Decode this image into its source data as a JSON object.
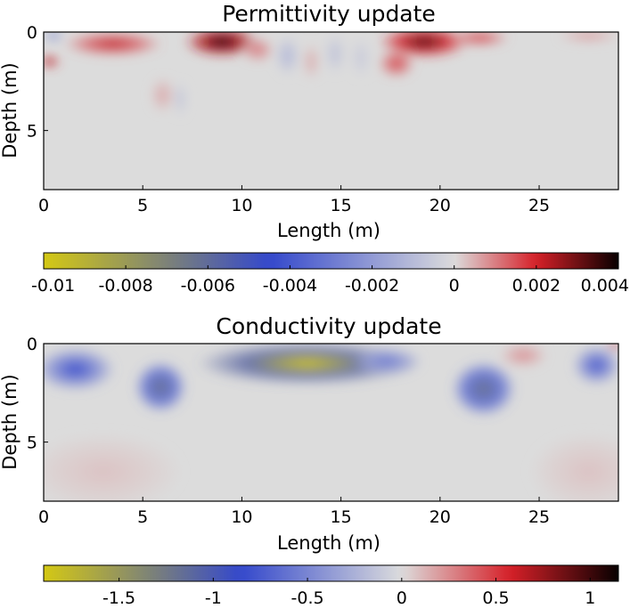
{
  "chart_data": [
    {
      "type": "heatmap",
      "title": "Permittivity update",
      "xlabel": "Length (m)",
      "ylabel": "Depth (m)",
      "xlim": [
        0,
        29
      ],
      "ylim": [
        8,
        0
      ],
      "x_ticks": [
        "0",
        "5",
        "10",
        "15",
        "20",
        "25"
      ],
      "y_ticks": [
        "0",
        "5"
      ],
      "colorbar": {
        "range": [
          -0.01,
          0.004
        ],
        "ticks": [
          -0.01,
          -0.008,
          -0.006,
          -0.004,
          -0.002,
          0,
          0.002,
          0.004
        ],
        "tick_labels": [
          "-0.01",
          "-0.008",
          "-0.006",
          "-0.004",
          "-0.002",
          "0",
          "0.002",
          "0.004"
        ]
      },
      "blobs": [
        {
          "x": 3.5,
          "y": 0.6,
          "rx": 2.5,
          "ry": 0.6,
          "v": 0.0022
        },
        {
          "x": 9.0,
          "y": 0.5,
          "rx": 1.9,
          "ry": 0.75,
          "v": 0.0042
        },
        {
          "x": 10.8,
          "y": 0.9,
          "rx": 0.8,
          "ry": 0.6,
          "v": 0.0012
        },
        {
          "x": 6.0,
          "y": 3.2,
          "rx": 0.6,
          "ry": 0.9,
          "v": 0.0006
        },
        {
          "x": 6.9,
          "y": 3.4,
          "rx": 0.3,
          "ry": 0.9,
          "v": -0.0009
        },
        {
          "x": 0.3,
          "y": 1.5,
          "rx": 0.5,
          "ry": 0.3,
          "v": 0.003
        },
        {
          "x": 0.5,
          "y": 0.2,
          "rx": 0.5,
          "ry": 0.25,
          "v": -0.003
        },
        {
          "x": 12.3,
          "y": 1.2,
          "rx": 0.6,
          "ry": 1.0,
          "v": -0.0012
        },
        {
          "x": 13.5,
          "y": 1.5,
          "rx": 0.4,
          "ry": 0.9,
          "v": 0.0006
        },
        {
          "x": 14.7,
          "y": 1.1,
          "rx": 0.5,
          "ry": 1.0,
          "v": -0.0009
        },
        {
          "x": 16.0,
          "y": 1.3,
          "rx": 0.5,
          "ry": 1.0,
          "v": -0.0006
        },
        {
          "x": 19.2,
          "y": 0.5,
          "rx": 2.3,
          "ry": 0.8,
          "v": 0.0035
        },
        {
          "x": 17.8,
          "y": 1.6,
          "rx": 0.9,
          "ry": 0.7,
          "v": 0.0018
        },
        {
          "x": 22.0,
          "y": 0.3,
          "rx": 1.5,
          "ry": 0.4,
          "v": 0.0018
        },
        {
          "x": 27.5,
          "y": 0.2,
          "rx": 1.6,
          "ry": 0.3,
          "v": 0.0008
        }
      ]
    },
    {
      "type": "heatmap",
      "title": "Conductivity update",
      "xlabel": "Length (m)",
      "ylabel": "Depth (m)",
      "xlim": [
        0,
        29
      ],
      "ylim": [
        8,
        0
      ],
      "x_ticks": [
        "0",
        "5",
        "10",
        "15",
        "20",
        "25"
      ],
      "y_ticks": [
        "0",
        "5"
      ],
      "colorbar": {
        "range": [
          -1.9,
          1.15
        ],
        "ticks": [
          -1.5,
          -1,
          -0.5,
          0,
          0.5,
          1
        ],
        "tick_labels": [
          "-1.5",
          "-1",
          "-0.5",
          "0",
          "0.5",
          "1"
        ]
      },
      "blobs": [
        {
          "x": 1.6,
          "y": 1.3,
          "rx": 2.0,
          "ry": 1.1,
          "v": -0.85
        },
        {
          "x": 5.9,
          "y": 2.2,
          "rx": 1.3,
          "ry": 1.3,
          "v": -1.2
        },
        {
          "x": 13.3,
          "y": 1.0,
          "rx": 5.6,
          "ry": 1.1,
          "v": -2.0
        },
        {
          "x": 17.3,
          "y": 0.9,
          "rx": 1.8,
          "ry": 0.7,
          "v": -0.6
        },
        {
          "x": 22.2,
          "y": 2.3,
          "rx": 1.6,
          "ry": 1.4,
          "v": -1.2
        },
        {
          "x": 27.9,
          "y": 1.1,
          "rx": 1.2,
          "ry": 1.0,
          "v": -0.8
        },
        {
          "x": 24.2,
          "y": 0.6,
          "rx": 1.2,
          "ry": 0.6,
          "v": 0.25
        },
        {
          "x": 28.8,
          "y": 0.1,
          "rx": 0.4,
          "ry": 0.15,
          "v": 1.0
        },
        {
          "x": 3.0,
          "y": 6.5,
          "rx": 4.0,
          "ry": 2.0,
          "v": 0.08
        },
        {
          "x": 27.5,
          "y": 6.5,
          "rx": 3.0,
          "ry": 2.0,
          "v": 0.08
        }
      ]
    }
  ]
}
